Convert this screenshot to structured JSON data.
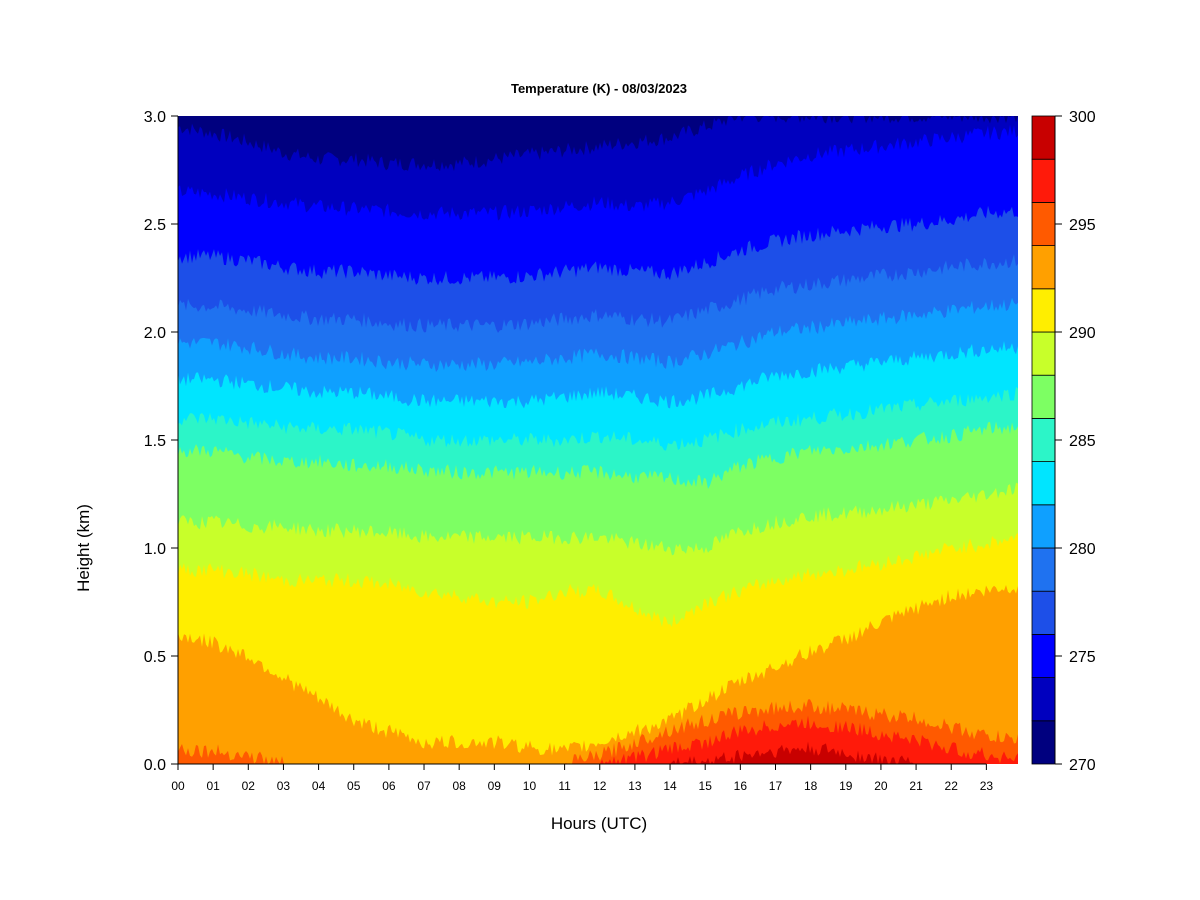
{
  "chart_data": {
    "type": "heatmap",
    "title": "Temperature (K) - 08/03/2023",
    "xlabel": "Hours (UTC)",
    "ylabel": "Height (km)",
    "xlim": [
      0,
      23.9
    ],
    "ylim": [
      0,
      3.0
    ],
    "x_ticks": [
      "00",
      "01",
      "02",
      "03",
      "04",
      "05",
      "06",
      "07",
      "08",
      "09",
      "10",
      "11",
      "12",
      "13",
      "14",
      "15",
      "16",
      "17",
      "18",
      "19",
      "20",
      "21",
      "22",
      "23"
    ],
    "y_ticks": [
      "0.0",
      "0.5",
      "1.0",
      "1.5",
      "2.0",
      "2.5",
      "3.0"
    ],
    "colorbar": {
      "min": 270,
      "max": 300,
      "step": 2,
      "tick_labels": [
        "270",
        "275",
        "280",
        "285",
        "290",
        "295",
        "300"
      ],
      "colors": [
        "#00007f",
        "#0000bf",
        "#0000ff",
        "#1d4fe8",
        "#1f72f0",
        "#0fa0ff",
        "#00e5ff",
        "#2cf5c8",
        "#7dff63",
        "#c8ff2a",
        "#ffee00",
        "#ffa000",
        "#ff5a00",
        "#ff1a0a",
        "#c80000"
      ]
    },
    "level_boundaries": {
      "note": "Height (km) of the upper boundary of each 2 K temperature band at hourly intervals",
      "hours": [
        0,
        1,
        2,
        3,
        4,
        5,
        6,
        7,
        8,
        9,
        10,
        11,
        12,
        13,
        14,
        15,
        16,
        17,
        18,
        19,
        20,
        21,
        22,
        23,
        23.9
      ],
      "levels": [
        {
          "value": 298,
          "heights": [
            0,
            0,
            0,
            0,
            0,
            0,
            0,
            0,
            0,
            0,
            0,
            0,
            0,
            0,
            0,
            0.01,
            0.04,
            0.06,
            0.07,
            0.05,
            0.02,
            0,
            0,
            0,
            0
          ]
        },
        {
          "value": 296,
          "heights": [
            0,
            0,
            0,
            0,
            0,
            0,
            0,
            0,
            0,
            0,
            0,
            0,
            0,
            0.03,
            0.07,
            0.1,
            0.15,
            0.18,
            0.19,
            0.17,
            0.14,
            0.11,
            0.07,
            0.04,
            0.03
          ]
        },
        {
          "value": 294,
          "heights": [
            0.07,
            0.06,
            0.04,
            0,
            0,
            0,
            0,
            0,
            0,
            0,
            0,
            0,
            0.04,
            0.1,
            0.16,
            0.2,
            0.24,
            0.26,
            0.27,
            0.25,
            0.23,
            0.21,
            0.17,
            0.13,
            0.11
          ]
        },
        {
          "value": 292,
          "heights": [
            0.6,
            0.56,
            0.5,
            0.4,
            0.3,
            0.2,
            0.15,
            0.1,
            0.1,
            0.1,
            0.08,
            0.06,
            0.1,
            0.15,
            0.2,
            0.3,
            0.38,
            0.45,
            0.52,
            0.58,
            0.65,
            0.72,
            0.78,
            0.8,
            0.82
          ]
        },
        {
          "value": 290,
          "heights": [
            0.9,
            0.9,
            0.88,
            0.85,
            0.85,
            0.85,
            0.83,
            0.8,
            0.78,
            0.75,
            0.75,
            0.8,
            0.8,
            0.72,
            0.65,
            0.75,
            0.8,
            0.85,
            0.88,
            0.9,
            0.93,
            0.96,
            1.0,
            1.02,
            1.05
          ]
        },
        {
          "value": 288,
          "heights": [
            1.12,
            1.12,
            1.1,
            1.1,
            1.08,
            1.08,
            1.07,
            1.05,
            1.05,
            1.05,
            1.05,
            1.05,
            1.05,
            1.02,
            1.0,
            1.0,
            1.08,
            1.12,
            1.15,
            1.16,
            1.18,
            1.2,
            1.22,
            1.25,
            1.28
          ]
        },
        {
          "value": 286,
          "heights": [
            1.45,
            1.45,
            1.42,
            1.4,
            1.4,
            1.38,
            1.38,
            1.36,
            1.35,
            1.35,
            1.35,
            1.35,
            1.35,
            1.33,
            1.32,
            1.3,
            1.38,
            1.42,
            1.45,
            1.46,
            1.48,
            1.5,
            1.52,
            1.55,
            1.56
          ]
        },
        {
          "value": 284,
          "heights": [
            1.6,
            1.6,
            1.58,
            1.56,
            1.55,
            1.55,
            1.53,
            1.5,
            1.5,
            1.5,
            1.5,
            1.5,
            1.52,
            1.5,
            1.48,
            1.5,
            1.55,
            1.58,
            1.6,
            1.62,
            1.64,
            1.66,
            1.68,
            1.7,
            1.72
          ]
        },
        {
          "value": 282,
          "heights": [
            1.78,
            1.78,
            1.76,
            1.74,
            1.72,
            1.72,
            1.7,
            1.68,
            1.68,
            1.68,
            1.68,
            1.7,
            1.72,
            1.7,
            1.68,
            1.7,
            1.75,
            1.8,
            1.82,
            1.84,
            1.86,
            1.88,
            1.9,
            1.92,
            1.93
          ]
        },
        {
          "value": 280,
          "heights": [
            1.95,
            1.95,
            1.93,
            1.9,
            1.88,
            1.88,
            1.86,
            1.85,
            1.85,
            1.85,
            1.86,
            1.88,
            1.9,
            1.88,
            1.86,
            1.9,
            1.95,
            2.0,
            2.02,
            2.04,
            2.06,
            2.08,
            2.1,
            2.12,
            2.13
          ]
        },
        {
          "value": 278,
          "heights": [
            2.12,
            2.12,
            2.1,
            2.08,
            2.06,
            2.06,
            2.04,
            2.03,
            2.03,
            2.03,
            2.04,
            2.06,
            2.08,
            2.06,
            2.05,
            2.1,
            2.15,
            2.2,
            2.22,
            2.24,
            2.26,
            2.28,
            2.3,
            2.32,
            2.33
          ]
        },
        {
          "value": 276,
          "heights": [
            2.35,
            2.35,
            2.33,
            2.3,
            2.28,
            2.28,
            2.26,
            2.25,
            2.25,
            2.25,
            2.26,
            2.28,
            2.3,
            2.28,
            2.27,
            2.32,
            2.38,
            2.42,
            2.45,
            2.47,
            2.49,
            2.5,
            2.52,
            2.55,
            2.56
          ]
        },
        {
          "value": 274,
          "heights": [
            2.65,
            2.64,
            2.62,
            2.6,
            2.58,
            2.57,
            2.56,
            2.55,
            2.55,
            2.55,
            2.56,
            2.58,
            2.6,
            2.58,
            2.6,
            2.65,
            2.72,
            2.78,
            2.82,
            2.84,
            2.86,
            2.88,
            2.9,
            2.92,
            2.93
          ]
        },
        {
          "value": 272,
          "heights": [
            2.95,
            2.92,
            2.88,
            2.83,
            2.8,
            2.8,
            2.78,
            2.78,
            2.78,
            2.8,
            2.82,
            2.84,
            2.86,
            2.88,
            2.9,
            2.95,
            3.0,
            3.0,
            3.0,
            3.0,
            3.0,
            3.0,
            3.0,
            3.0,
            3.0
          ]
        }
      ]
    }
  }
}
